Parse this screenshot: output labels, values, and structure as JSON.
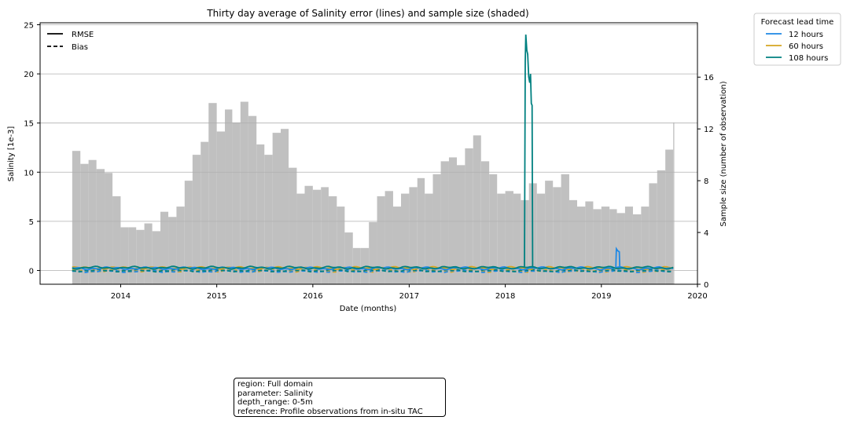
{
  "chart_data": {
    "type": "line",
    "title": "Thirty day average of Salinity error (lines) and sample size (shaded)",
    "xlabel": "Date (months)",
    "ylabel": "Salinity [1e-3]",
    "y2label": "Sample size (number of observation)",
    "xlim": [
      "2013-03-01",
      "2020-01-01"
    ],
    "ylim": [
      -1.4,
      25.2
    ],
    "y2lim": [
      0,
      20.2
    ],
    "x_ticks": [
      "2014",
      "2015",
      "2016",
      "2017",
      "2018",
      "2019",
      "2020"
    ],
    "y_ticks": [
      "0",
      "5",
      "10",
      "15",
      "20",
      "25"
    ],
    "y2_ticks": [
      "0",
      "4",
      "8",
      "12",
      "16"
    ],
    "grid": "horizontal",
    "style_legend": [
      {
        "label": "RMSE",
        "dash": "solid"
      },
      {
        "label": "Bias",
        "dash": "dashed"
      }
    ],
    "lead_legend_title": "Forecast lead time",
    "series": [
      {
        "name": "12 hours",
        "color": "#1e88e5"
      },
      {
        "name": "60 hours",
        "color": "#d4a520"
      },
      {
        "name": "108 hours",
        "color": "#008080"
      }
    ],
    "sample_size": [
      [
        "2013-07-01",
        10.3
      ],
      [
        "2013-08-01",
        9.3
      ],
      [
        "2013-09-01",
        9.6
      ],
      [
        "2013-10-01",
        8.9
      ],
      [
        "2013-11-01",
        8.6
      ],
      [
        "2013-12-01",
        6.8
      ],
      [
        "2014-01-01",
        4.4
      ],
      [
        "2014-02-01",
        4.4
      ],
      [
        "2014-03-01",
        4.2
      ],
      [
        "2014-04-01",
        4.7
      ],
      [
        "2014-05-01",
        4.1
      ],
      [
        "2014-06-01",
        5.6
      ],
      [
        "2014-07-01",
        5.2
      ],
      [
        "2014-08-01",
        6.0
      ],
      [
        "2014-09-01",
        8.0
      ],
      [
        "2014-10-01",
        10.0
      ],
      [
        "2014-11-01",
        11.0
      ],
      [
        "2014-12-01",
        14.0
      ],
      [
        "2015-01-01",
        11.8
      ],
      [
        "2015-02-01",
        13.5
      ],
      [
        "2015-03-01",
        12.5
      ],
      [
        "2015-04-01",
        14.1
      ],
      [
        "2015-05-01",
        13.0
      ],
      [
        "2015-06-01",
        10.8
      ],
      [
        "2015-07-01",
        10.0
      ],
      [
        "2015-08-01",
        11.7
      ],
      [
        "2015-09-01",
        12.0
      ],
      [
        "2015-10-01",
        9.0
      ],
      [
        "2015-11-01",
        7.0
      ],
      [
        "2015-12-01",
        7.6
      ],
      [
        "2016-01-01",
        7.3
      ],
      [
        "2016-02-01",
        7.5
      ],
      [
        "2016-03-01",
        6.8
      ],
      [
        "2016-04-01",
        6.0
      ],
      [
        "2016-05-01",
        4.0
      ],
      [
        "2016-06-01",
        2.8
      ],
      [
        "2016-07-01",
        2.8
      ],
      [
        "2016-08-01",
        4.8
      ],
      [
        "2016-09-01",
        6.8
      ],
      [
        "2016-10-01",
        7.2
      ],
      [
        "2016-11-01",
        6.0
      ],
      [
        "2016-12-01",
        7.0
      ],
      [
        "2017-01-01",
        7.5
      ],
      [
        "2017-02-01",
        8.2
      ],
      [
        "2017-03-01",
        7.0
      ],
      [
        "2017-04-01",
        8.5
      ],
      [
        "2017-05-01",
        9.5
      ],
      [
        "2017-06-01",
        9.8
      ],
      [
        "2017-07-01",
        9.2
      ],
      [
        "2017-08-01",
        10.5
      ],
      [
        "2017-09-01",
        11.5
      ],
      [
        "2017-10-01",
        9.5
      ],
      [
        "2017-11-01",
        8.5
      ],
      [
        "2017-12-01",
        7.0
      ],
      [
        "2018-01-01",
        7.2
      ],
      [
        "2018-02-01",
        7.0
      ],
      [
        "2018-03-01",
        6.5
      ],
      [
        "2018-04-01",
        7.8
      ],
      [
        "2018-05-01",
        7.0
      ],
      [
        "2018-06-01",
        8.0
      ],
      [
        "2018-07-01",
        7.5
      ],
      [
        "2018-08-01",
        8.5
      ],
      [
        "2018-09-01",
        6.5
      ],
      [
        "2018-10-01",
        6.0
      ],
      [
        "2018-11-01",
        6.4
      ],
      [
        "2018-12-01",
        5.8
      ],
      [
        "2019-01-01",
        6.0
      ],
      [
        "2019-02-01",
        5.8
      ],
      [
        "2019-03-01",
        5.5
      ],
      [
        "2019-04-01",
        6.0
      ],
      [
        "2019-05-01",
        5.4
      ],
      [
        "2019-06-01",
        6.0
      ],
      [
        "2019-07-01",
        7.8
      ],
      [
        "2019-08-01",
        8.8
      ],
      [
        "2019-09-01",
        10.4
      ],
      [
        "2019-10-01",
        12.5
      ]
    ],
    "rmse_108_spike": [
      [
        "2018-03-15",
        0.3
      ],
      [
        "2018-03-18",
        21.3
      ],
      [
        "2018-03-20",
        24.0
      ],
      [
        "2018-03-24",
        22.4
      ],
      [
        "2018-03-27",
        22.0
      ],
      [
        "2018-03-31",
        19.7
      ],
      [
        "2018-04-04",
        19.1
      ],
      [
        "2018-04-07",
        20.0
      ],
      [
        "2018-04-10",
        17.0
      ],
      [
        "2018-04-13",
        16.8
      ],
      [
        "2018-04-15",
        0.3
      ]
    ],
    "rmse_12_blip": [
      [
        "2019-02-25",
        0.3
      ],
      [
        "2019-02-27",
        2.2
      ],
      [
        "2019-03-04",
        2.0
      ],
      [
        "2019-03-10",
        1.9
      ],
      [
        "2019-03-12",
        0.3
      ]
    ]
  },
  "info_box": {
    "line1": "region: Full domain",
    "line2": "parameter: Salinity",
    "line3": "depth_range: 0-5m",
    "line4": "reference: Profile observations from in-situ TAC"
  }
}
